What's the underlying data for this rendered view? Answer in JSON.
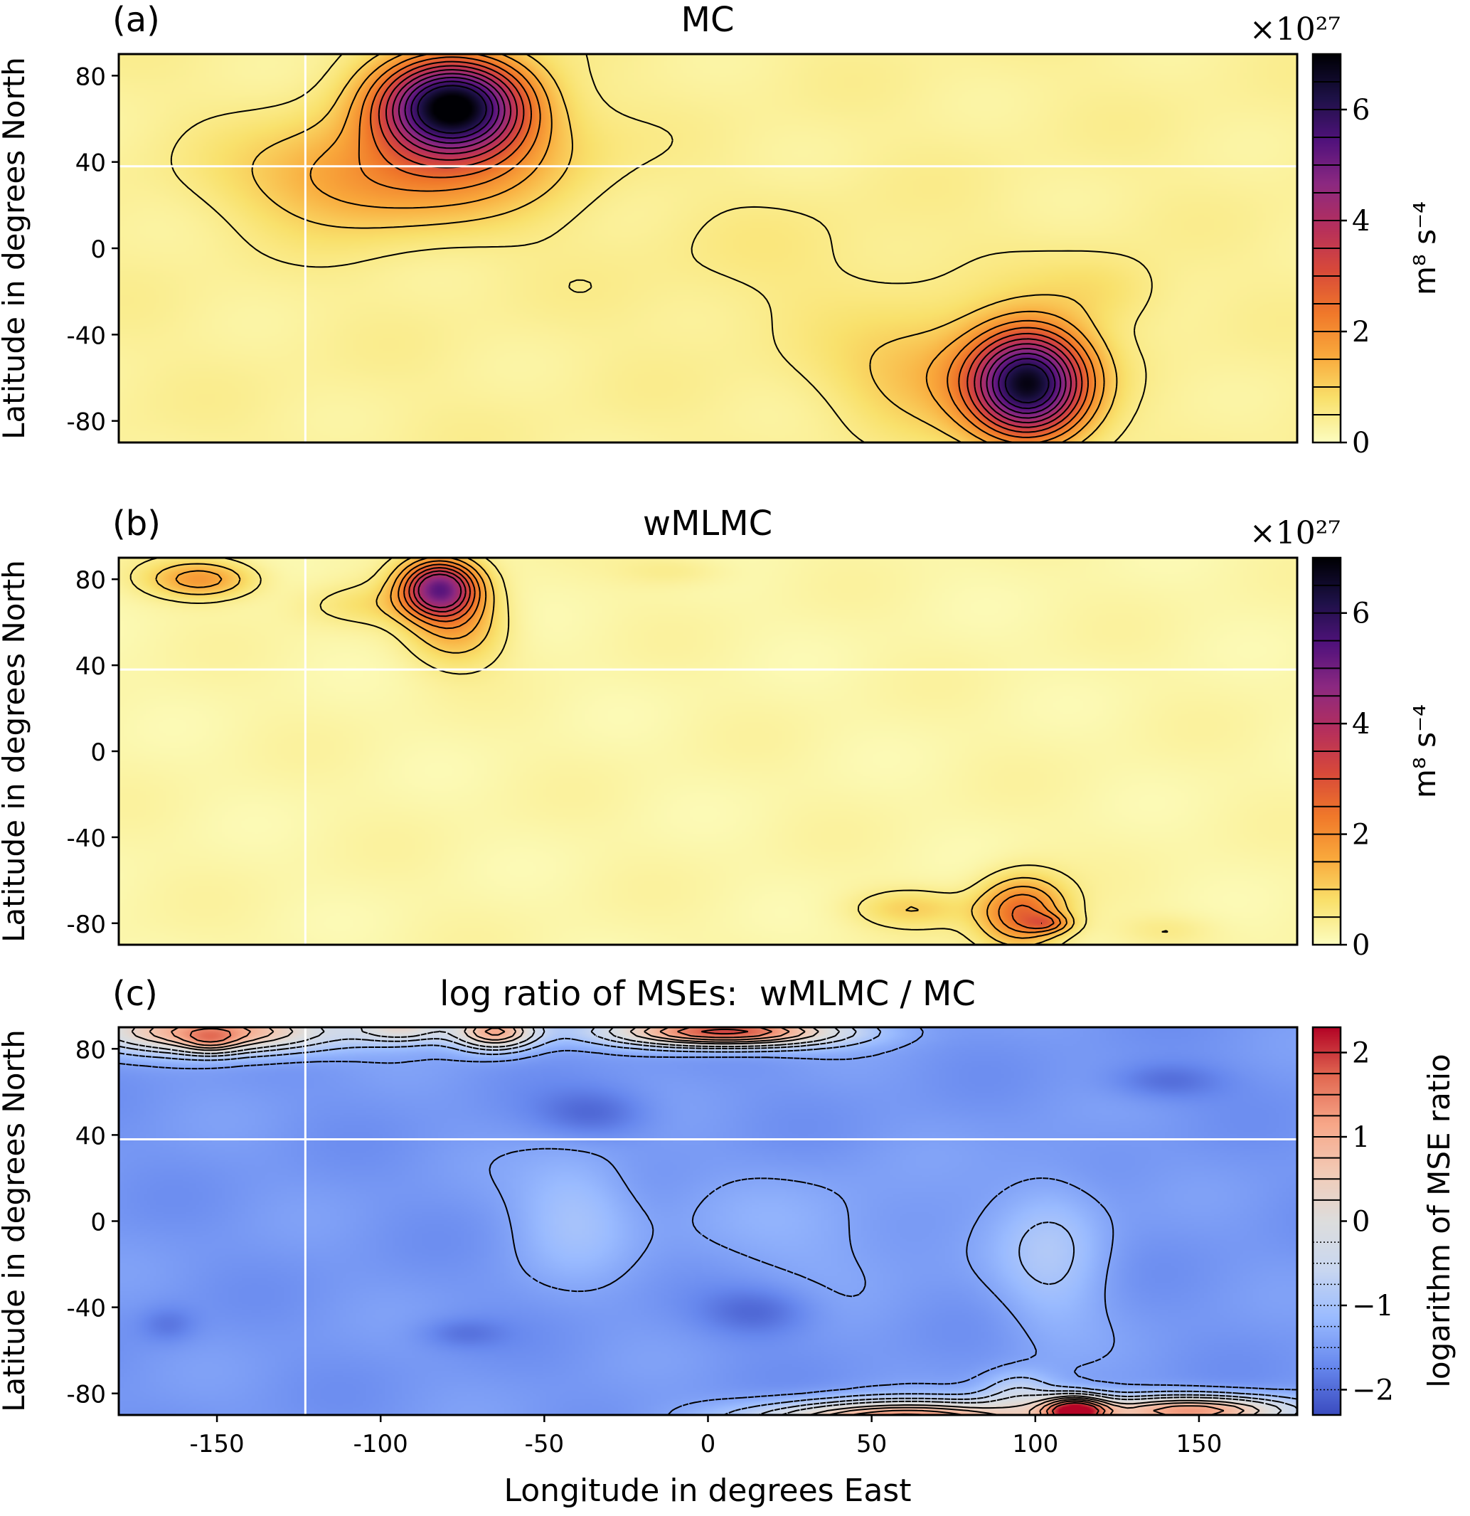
{
  "colors": {
    "seq_stops": [
      "#fcfdbf",
      "#f9e16c",
      "#f9a93c",
      "#f0782a",
      "#d8493a",
      "#b52f5d",
      "#8c2981",
      "#51127c",
      "#1d1147",
      "#000004"
    ],
    "div_stops": [
      "#3b4cc0",
      "#6788ee",
      "#9abbff",
      "#c9d7f0",
      "#dddddd",
      "#f2cbb7",
      "#f7a789",
      "#e26952",
      "#b40426"
    ],
    "crosshair": "#ffffff",
    "contour": "#000000",
    "axis": "#000000"
  },
  "chart_data": [
    {
      "id": "a",
      "type": "heatmap",
      "panel_label": "(a)",
      "title": "MC",
      "xlim": [
        -180,
        180
      ],
      "ylim": [
        -90,
        90
      ],
      "yticks": [
        80,
        40,
        0,
        -40,
        -80
      ],
      "ylabel": "Latitude in degrees North",
      "xlabel": "",
      "show_xticklabels": false,
      "crosshair": {
        "lon": -123,
        "lat": 38
      },
      "colorbar": {
        "min": 0,
        "max": 7,
        "ticks": [
          0,
          2,
          4,
          6
        ],
        "label": "m⁸ s⁻⁴",
        "multiplier": "×10²⁷",
        "colormap": "inferno_r",
        "levels": [
          0.5,
          1,
          1.5,
          2,
          2.5,
          3,
          3.5,
          4,
          4.5,
          5,
          5.5,
          6,
          6.5
        ]
      },
      "contour_levels": [
        0.5,
        1,
        1.5,
        2,
        2.5,
        3,
        3.5,
        4,
        4.5,
        5,
        5.5,
        6
      ],
      "background_value": 0.35,
      "blobs": [
        {
          "lon": -78,
          "lat": 66,
          "slon": 15,
          "slat": 15,
          "amp": 6.6
        },
        {
          "lon": -100,
          "lat": 34,
          "slon": 28,
          "slat": 18,
          "amp": 1.6
        },
        {
          "lon": -60,
          "lat": 45,
          "slon": 20,
          "slat": 18,
          "amp": 0.6
        },
        {
          "lon": 98,
          "lat": -63,
          "slon": 12,
          "slat": 17,
          "amp": 6.0
        },
        {
          "lon": 72,
          "lat": -58,
          "slon": 22,
          "slat": 18,
          "amp": 1.0
        },
        {
          "lon": 120,
          "lat": -20,
          "slon": 14,
          "slat": 12,
          "amp": 0.45
        },
        {
          "lon": 30,
          "lat": -10,
          "slon": 40,
          "slat": 25,
          "amp": 0.2
        }
      ]
    },
    {
      "id": "b",
      "type": "heatmap",
      "panel_label": "(b)",
      "title": "wMLMC",
      "xlim": [
        -180,
        180
      ],
      "ylim": [
        -90,
        90
      ],
      "yticks": [
        80,
        40,
        0,
        -40,
        -80
      ],
      "ylabel": "Latitude in degrees North",
      "xlabel": "",
      "show_xticklabels": false,
      "crosshair": {
        "lon": -123,
        "lat": 38
      },
      "colorbar": {
        "min": 0,
        "max": 7,
        "ticks": [
          0,
          2,
          4,
          6
        ],
        "label": "m⁸ s⁻⁴",
        "multiplier": "×10²⁷",
        "colormap": "inferno_r",
        "levels": [
          0.5,
          1,
          1.5,
          2,
          2.5,
          3,
          3.5,
          4,
          4.5,
          5,
          5.5,
          6,
          6.5
        ]
      },
      "contour_levels": [
        0.5,
        1,
        1.5,
        2,
        2.5,
        3,
        3.5,
        4
      ],
      "background_value": 0.2,
      "blobs": [
        {
          "lon": -82,
          "lat": 76,
          "slon": 8,
          "slat": 9,
          "amp": 4.6
        },
        {
          "lon": -77,
          "lat": 58,
          "slon": 10,
          "slat": 12,
          "amp": 1.3
        },
        {
          "lon": -105,
          "lat": 68,
          "slon": 14,
          "slat": 7,
          "amp": 0.5
        },
        {
          "lon": -155,
          "lat": 80,
          "slon": 11,
          "slat": 6,
          "amp": 1.6
        },
        {
          "lon": 96,
          "lat": -75,
          "slon": 9,
          "slat": 11,
          "amp": 2.4
        },
        {
          "lon": 104,
          "lat": -80,
          "slon": 5,
          "slat": 3,
          "amp": 1.2
        },
        {
          "lon": 62,
          "lat": -73,
          "slon": 12,
          "slat": 6,
          "amp": 0.75
        },
        {
          "lon": -10,
          "lat": 84,
          "slon": 12,
          "slat": 5,
          "amp": 0.3
        },
        {
          "lon": 140,
          "lat": -83,
          "slon": 10,
          "slat": 5,
          "amp": 0.3
        }
      ]
    },
    {
      "id": "c",
      "type": "heatmap",
      "panel_label": "(c)",
      "title": "log ratio of MSEs:  wMLMC / MC",
      "xlim": [
        -180,
        180
      ],
      "ylim": [
        -90,
        90
      ],
      "yticks": [
        80,
        40,
        0,
        -40,
        -80
      ],
      "xticks": [
        -150,
        -100,
        -50,
        0,
        50,
        100,
        150
      ],
      "ylabel": "Latitude in degrees North",
      "xlabel": "Longitude in degrees East",
      "show_xticklabels": true,
      "crosshair": {
        "lon": -123,
        "lat": 38
      },
      "colorbar": {
        "min": -2.3,
        "max": 2.3,
        "ticks": [
          2,
          1,
          0,
          -1,
          -2
        ],
        "tick_labels": [
          "2",
          "1",
          "0",
          "−1",
          "−2"
        ],
        "label": "logarithm of MSE ratio",
        "multiplier": "",
        "colormap": "coolwarm",
        "levels": [
          -2.0,
          -1.75,
          -1.5,
          -1.25,
          -1.0,
          -0.75,
          -0.5,
          -0.25,
          0.25,
          0.5,
          0.75,
          1.0,
          1.25,
          1.5,
          1.75,
          2.0
        ]
      },
      "contour_levels": [
        -1.4,
        -1.0,
        -0.6,
        -0.25,
        0.25,
        0.6,
        1.0,
        1.4,
        1.8
      ],
      "background_value": -1.55,
      "blobs": [
        {
          "lon": -150,
          "lat": 88,
          "slon": 26,
          "slat": 7,
          "amp": 2.8
        },
        {
          "lon": -152,
          "lat": 83,
          "slon": 6,
          "slat": 4,
          "amp": 0.8
        },
        {
          "lon": -65,
          "lat": 88,
          "slon": 9,
          "slat": 6,
          "amp": 2.6
        },
        {
          "lon": -93,
          "lat": 90,
          "slon": 10,
          "slat": 5,
          "amp": 1.5
        },
        {
          "lon": 5,
          "lat": 88,
          "slon": 24,
          "slat": 5,
          "amp": 3.6
        },
        {
          "lon": 60,
          "lat": -92,
          "slon": 30,
          "slat": 6,
          "amp": 3.1
        },
        {
          "lon": 112,
          "lat": -88,
          "slon": 7,
          "slat": 5,
          "amp": 3.2
        },
        {
          "lon": 148,
          "lat": -88,
          "slon": 22,
          "slat": 5,
          "amp": 2.8
        },
        {
          "lon": -40,
          "lat": 5,
          "slon": 13,
          "slat": 20,
          "amp": 0.55
        },
        {
          "lon": 105,
          "lat": -15,
          "slon": 12,
          "slat": 26,
          "amp": 0.6
        },
        {
          "lon": 30,
          "lat": -5,
          "slon": 28,
          "slat": 20,
          "amp": 0.25
        },
        {
          "lon": 95,
          "lat": -80,
          "slon": 8,
          "slat": 7,
          "amp": 0.9
        },
        {
          "lon": -35,
          "lat": 50,
          "slon": 12,
          "slat": 8,
          "amp": -0.5
        },
        {
          "lon": 15,
          "lat": -42,
          "slon": 12,
          "slat": 8,
          "amp": -0.5
        },
        {
          "lon": 140,
          "lat": 65,
          "slon": 12,
          "slat": 6,
          "amp": -0.45
        },
        {
          "lon": -165,
          "lat": -48,
          "slon": 6,
          "slat": 6,
          "amp": -0.35
        },
        {
          "lon": -75,
          "lat": -52,
          "slon": 9,
          "slat": 5,
          "amp": -0.35
        }
      ]
    }
  ]
}
